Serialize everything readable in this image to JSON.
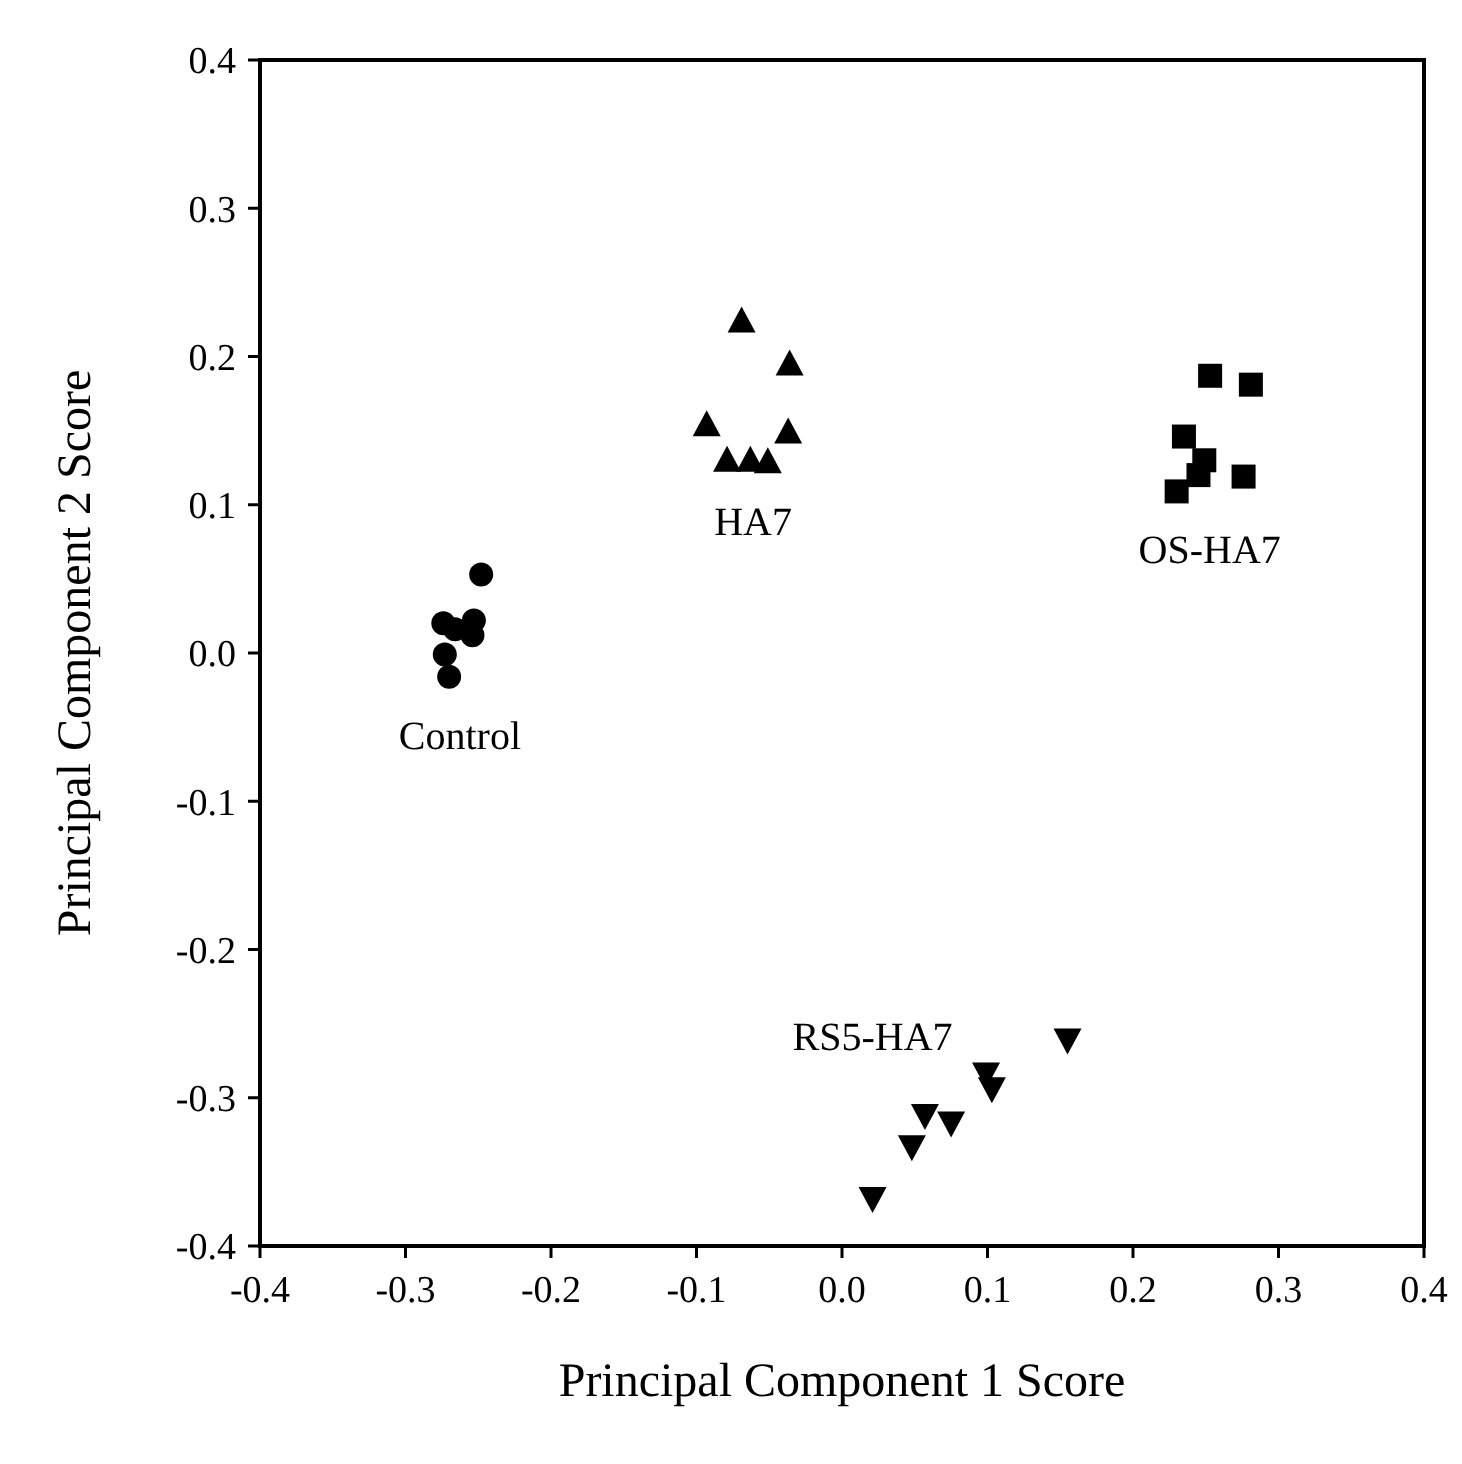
{
  "chart_data": {
    "type": "scatter",
    "xlabel": "Principal Component 1 Score",
    "ylabel": "Principal Component 2 Score",
    "xlim": [
      -0.4,
      0.4
    ],
    "xticks": [
      {
        "value": -0.4,
        "label": "-0.4"
      },
      {
        "value": -0.3,
        "label": "-0.3"
      },
      {
        "value": -0.2,
        "label": "-0.2"
      },
      {
        "value": -0.1,
        "label": "-0.1"
      },
      {
        "value": 0,
        "label": "0.0"
      },
      {
        "value": 0.1,
        "label": "0.1"
      },
      {
        "value": 0.2,
        "label": "0.2"
      },
      {
        "value": 0.3,
        "label": "0.3"
      },
      {
        "value": 0.4,
        "label": "0.4"
      }
    ],
    "ylim": [
      -0.4,
      0.4
    ],
    "yticks": [
      {
        "value": -0.4,
        "label": "-0.4"
      },
      {
        "value": -0.3,
        "label": "-0.3"
      },
      {
        "value": -0.2,
        "label": "-0.2"
      },
      {
        "value": -0.1,
        "label": "-0.1"
      },
      {
        "value": 0,
        "label": "0.0"
      },
      {
        "value": 0.1,
        "label": "0.1"
      },
      {
        "value": 0.2,
        "label": "0.2"
      },
      {
        "value": 0.3,
        "label": "0.3"
      },
      {
        "value": 0.4,
        "label": "0.4"
      }
    ],
    "grid": false,
    "series": [
      {
        "name": "Control",
        "color": "#000000",
        "marker": "circle",
        "x": [
          -0.248,
          -0.274,
          -0.266,
          -0.253,
          -0.254,
          -0.273,
          -0.27
        ],
        "values": [
          0.053,
          0.02,
          0.016,
          0.022,
          0.012,
          -0.001,
          -0.016
        ]
      },
      {
        "name": "HA7",
        "color": "#000000",
        "marker": "triangle",
        "x": [
          -0.069,
          -0.036,
          -0.093,
          -0.037,
          -0.079,
          -0.063,
          -0.051
        ],
        "values": [
          0.223,
          0.194,
          0.153,
          0.148,
          0.129,
          0.129,
          0.128
        ]
      },
      {
        "name": "OS-HA7",
        "color": "#000000",
        "marker": "square",
        "x": [
          0.253,
          0.281,
          0.235,
          0.249,
          0.245,
          0.276,
          0.23
        ],
        "values": [
          0.187,
          0.181,
          0.146,
          0.13,
          0.12,
          0.119,
          0.109
        ]
      },
      {
        "name": "RS5-HA7",
        "color": "#000000",
        "marker": "triangle-down",
        "x": [
          0.155,
          0.099,
          0.103,
          0.057,
          0.075,
          0.048,
          0.021
        ],
        "values": [
          -0.26,
          -0.283,
          -0.293,
          -0.311,
          -0.316,
          -0.332,
          -0.367
        ]
      }
    ]
  }
}
